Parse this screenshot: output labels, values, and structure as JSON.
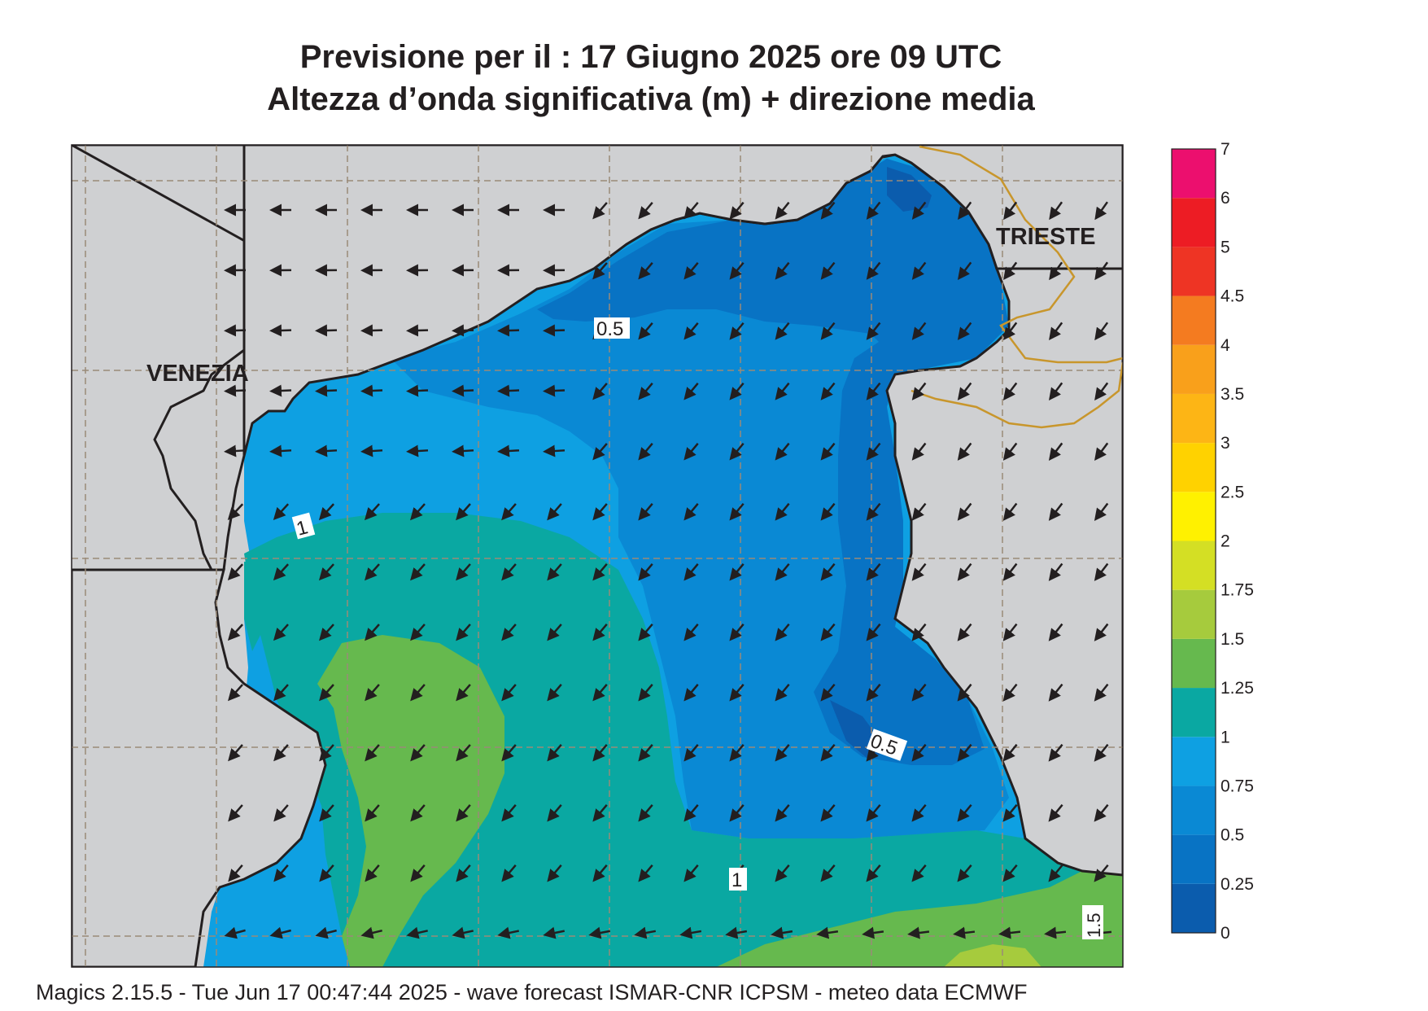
{
  "title_line1": "Previsione per il  :  17   Giugno  2025   ore 09 UTC",
  "title_line2": "Altezza d’onda significativa (m) + direzione media",
  "footer": "Magics 2.15.5 - Tue Jun 17 00:47:44 2025 - wave forecast  ISMAR-CNR  ICPSM - meteo data    ECMWF",
  "places": [
    {
      "name": "VENEZIA"
    },
    {
      "name": "TRIESTE"
    }
  ],
  "contour_labels": [
    "0.5",
    "1",
    "0.5",
    "1",
    "1.5"
  ],
  "legend": {
    "ticks": [
      "0",
      "0.25",
      "0.5",
      "0.75",
      "1",
      "1.25",
      "1.5",
      "1.75",
      "2",
      "2.5",
      "3",
      "3.5",
      "4",
      "4.5",
      "5",
      "6",
      "7"
    ],
    "colors": [
      "#0b5cad",
      "#0873c4",
      "#0a89d4",
      "#0ea0e2",
      "#0aa8a2",
      "#66b94e",
      "#a6cb3d",
      "#d4df24",
      "#fff100",
      "#ffd200",
      "#fdb515",
      "#f9a01b",
      "#f47b20",
      "#ee3424",
      "#ed1c24",
      "#ec0f6e"
    ]
  },
  "colors": {
    "land": "#cfd0d2",
    "frame": "#231f20",
    "border": "#c8962c",
    "grid": "#9a8a78"
  }
}
